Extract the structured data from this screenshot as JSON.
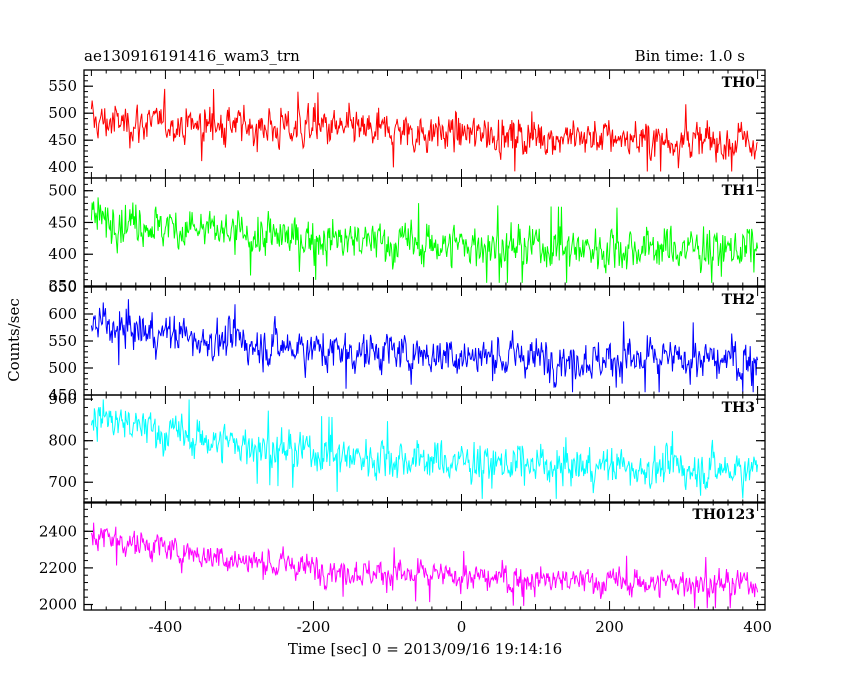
{
  "chart_data": {
    "type": "line",
    "title": "ae130916191416_wam3_trn",
    "subtitle": "Bin time: 1.0 s",
    "xlabel": "Time [sec] 0 = 2013/09/16 19:14:16",
    "ylabel": "Counts/sec",
    "xlim": [
      -510,
      410
    ],
    "x_ticks": [
      -400,
      -200,
      0,
      200,
      400
    ],
    "x_range_data": [
      -500,
      400
    ],
    "x_step": 1,
    "panels": [
      {
        "name": "TH0",
        "color": "#ff0000",
        "ylim": [
          380,
          580
        ],
        "y_ticks": [
          400,
          450,
          500,
          550
        ],
        "start_level": 485,
        "end_level": 445,
        "trend": "linear",
        "noise": 21,
        "spike_max": 545,
        "spike_min": 392
      },
      {
        "name": "TH1",
        "color": "#00ff00",
        "ylim": [
          350,
          520
        ],
        "y_ticks": [
          350,
          400,
          450,
          500
        ],
        "start_level": 460,
        "end_level": 405,
        "trend": "decay",
        "noise": 20,
        "spike_max": 518,
        "spike_min": 355
      },
      {
        "name": "TH2",
        "color": "#0000ff",
        "ylim": [
          450,
          650
        ],
        "y_ticks": [
          450,
          500,
          550,
          600,
          650
        ],
        "start_level": 585,
        "end_level": 510,
        "trend": "decay",
        "noise": 22,
        "spike_max": 645,
        "spike_min": 455
      },
      {
        "name": "TH3",
        "color": "#00ffff",
        "ylim": [
          650,
          910
        ],
        "y_ticks": [
          700,
          800,
          900
        ],
        "start_level": 860,
        "end_level": 725,
        "trend": "decay",
        "noise": 28,
        "spike_max": 905,
        "spike_min": 660
      },
      {
        "name": "TH0123",
        "color": "#ff00ff",
        "ylim": [
          1970,
          2560
        ],
        "y_ticks": [
          2000,
          2200,
          2400
        ],
        "start_level": 2390,
        "end_level": 2100,
        "trend": "decay",
        "noise": 45,
        "spike_max": 2540,
        "spike_min": 1980
      }
    ]
  }
}
